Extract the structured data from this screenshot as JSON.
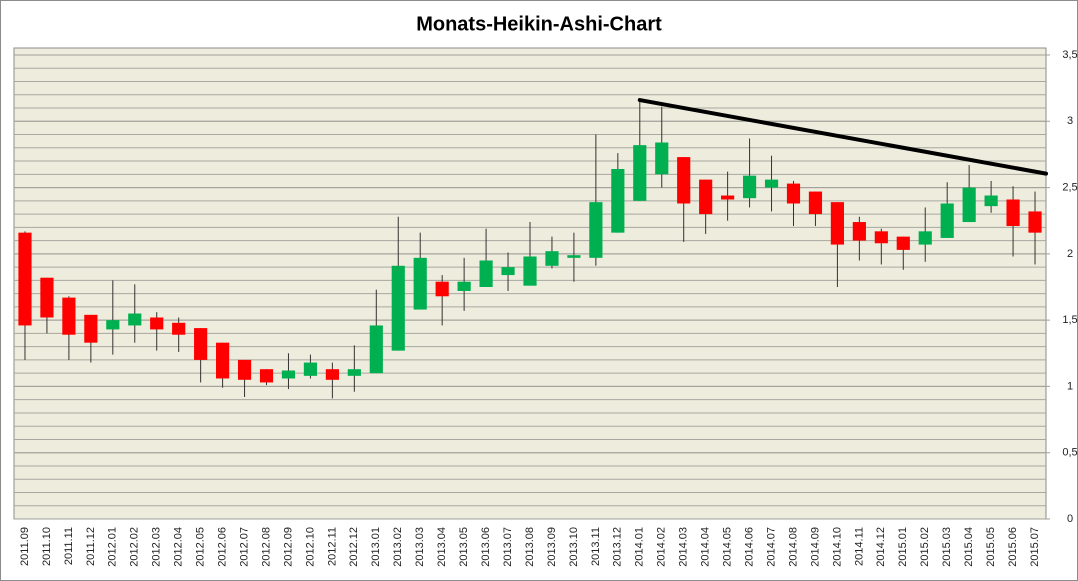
{
  "chart_data": {
    "type": "candlestick",
    "title": "Monats-Heikin-Ashi-Chart",
    "categories": [
      "2011.09",
      "2011.10",
      "2011.11",
      "2011.12",
      "2012.01",
      "2012.02",
      "2012.03",
      "2012.04",
      "2012.05",
      "2012.06",
      "2012.07",
      "2012.08",
      "2012.09",
      "2012.10",
      "2012.11",
      "2012.12",
      "2013.01",
      "2013.02",
      "2013.03",
      "2013.04",
      "2013.05",
      "2013.06",
      "2013.07",
      "2013.08",
      "2013.09",
      "2013.10",
      "2013.11",
      "2013.12",
      "2014.01",
      "2014.02",
      "2014.03",
      "2014.04",
      "2014.05",
      "2014.06",
      "2014.07",
      "2014.08",
      "2014.09",
      "2014.10",
      "2014.11",
      "2014.12",
      "2015.01",
      "2015.02",
      "2015.03",
      "2015.04",
      "2015.05",
      "2015.06",
      "2015.07"
    ],
    "open": [
      2.16,
      1.82,
      1.67,
      1.54,
      1.43,
      1.46,
      1.52,
      1.48,
      1.44,
      1.33,
      1.2,
      1.13,
      1.06,
      1.08,
      1.13,
      1.08,
      1.1,
      1.27,
      1.58,
      1.79,
      1.72,
      1.75,
      1.84,
      1.76,
      1.91,
      1.97,
      1.97,
      2.16,
      2.4,
      2.6,
      2.73,
      2.56,
      2.44,
      2.42,
      2.5,
      2.53,
      2.47,
      2.39,
      2.24,
      2.17,
      2.13,
      2.07,
      2.12,
      2.24,
      2.36,
      2.41,
      2.32
    ],
    "high": [
      2.17,
      1.82,
      1.68,
      1.54,
      1.8,
      1.77,
      1.56,
      1.52,
      1.44,
      1.33,
      1.2,
      1.13,
      1.25,
      1.24,
      1.18,
      1.31,
      1.73,
      2.28,
      2.16,
      1.84,
      1.97,
      2.19,
      2.01,
      2.24,
      2.13,
      2.16,
      2.9,
      2.76,
      3.15,
      3.11,
      2.73,
      2.56,
      2.62,
      2.87,
      2.74,
      2.55,
      2.47,
      2.39,
      2.28,
      2.19,
      2.13,
      2.35,
      2.54,
      2.67,
      2.55,
      2.51,
      2.47
    ],
    "low": [
      1.2,
      1.4,
      1.2,
      1.18,
      1.24,
      1.33,
      1.27,
      1.26,
      1.03,
      0.99,
      0.92,
      1.01,
      0.98,
      1.06,
      0.91,
      0.96,
      1.1,
      1.27,
      1.58,
      1.46,
      1.57,
      1.75,
      1.72,
      1.76,
      1.89,
      1.79,
      1.91,
      2.16,
      2.4,
      2.5,
      2.09,
      2.15,
      2.25,
      2.35,
      2.32,
      2.21,
      2.21,
      1.75,
      1.95,
      1.92,
      1.88,
      1.94,
      2.12,
      2.24,
      2.31,
      1.98,
      1.92
    ],
    "close": [
      1.46,
      1.52,
      1.39,
      1.33,
      1.5,
      1.55,
      1.43,
      1.39,
      1.2,
      1.06,
      1.05,
      1.03,
      1.12,
      1.18,
      1.05,
      1.13,
      1.46,
      1.91,
      1.97,
      1.68,
      1.79,
      1.95,
      1.9,
      1.98,
      2.02,
      1.99,
      2.39,
      2.64,
      2.82,
      2.84,
      2.38,
      2.3,
      2.41,
      2.59,
      2.56,
      2.38,
      2.3,
      2.07,
      2.1,
      2.08,
      2.03,
      2.17,
      2.38,
      2.5,
      2.44,
      2.21,
      2.16
    ],
    "up_color": "#00b050",
    "down_color": "#ff0000",
    "ylim": [
      0,
      3.5
    ],
    "yticks": [
      0,
      {
        "value": 0.5,
        "label": "0,5"
      },
      1,
      {
        "value": 1.5,
        "label": "1,5"
      },
      2,
      {
        "value": 2.5,
        "label": "2,5"
      },
      3,
      {
        "value": 3.5,
        "label": "3,5"
      }
    ],
    "grid": true,
    "minor_grid_step": 0.1,
    "trendline": {
      "from": "2014.01",
      "to": "2015.07",
      "values": [
        3.16,
        2.62
      ],
      "color": "#000000"
    }
  }
}
